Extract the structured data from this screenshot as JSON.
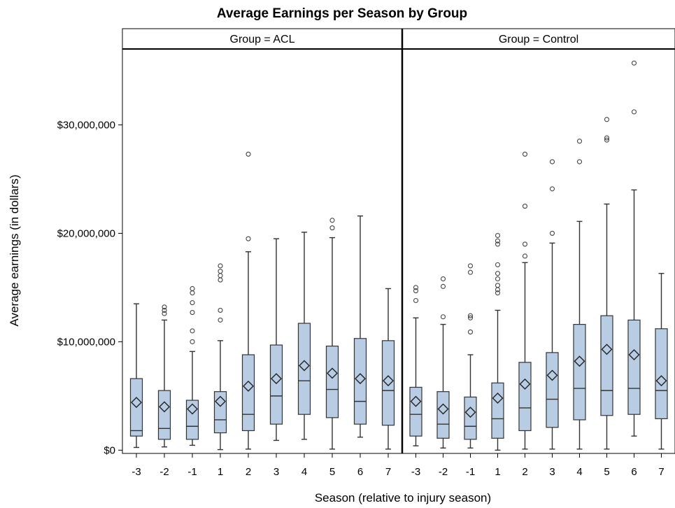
{
  "chart_data": {
    "type": "boxplot",
    "title": "Average Earnings per Season by Group",
    "xlabel": "Season (relative to injury season)",
    "ylabel": "Average earnings (in dollars)",
    "ylim": [
      -300000,
      37000000
    ],
    "yticks": [
      {
        "value": 0,
        "label": "$0"
      },
      {
        "value": 10000000,
        "label": "$10,000,000"
      },
      {
        "value": 20000000,
        "label": "$20,000,000"
      },
      {
        "value": 30000000,
        "label": "$30,000,000"
      }
    ],
    "categories": [
      "-3",
      "-2",
      "-1",
      "1",
      "2",
      "3",
      "4",
      "5",
      "6",
      "7"
    ],
    "box_color": "#b8cce4",
    "panels": [
      {
        "header": "Group = ACL",
        "boxes": [
          {
            "season": "-3",
            "whisker_low": 250000,
            "q1": 1300000,
            "median": 1800000,
            "q3": 6600000,
            "whisker_high": 13500000,
            "mean": 4400000,
            "outliers": []
          },
          {
            "season": "-2",
            "whisker_low": 300000,
            "q1": 1000000,
            "median": 2000000,
            "q3": 5500000,
            "whisker_high": 12000000,
            "mean": 4000000,
            "outliers": [
              12600000,
              12900000,
              13200000
            ]
          },
          {
            "season": "-1",
            "whisker_low": 450000,
            "q1": 1000000,
            "median": 2200000,
            "q3": 4600000,
            "whisker_high": 9100000,
            "mean": 3800000,
            "outliers": [
              10000000,
              11000000,
              12700000,
              13600000,
              14500000,
              14900000
            ]
          },
          {
            "season": "1",
            "whisker_low": 50000,
            "q1": 1600000,
            "median": 2800000,
            "q3": 5400000,
            "whisker_high": 10100000,
            "mean": 4500000,
            "outliers": [
              12000000,
              12900000,
              15700000,
              16100000,
              16500000,
              17000000
            ]
          },
          {
            "season": "2",
            "whisker_low": 100000,
            "q1": 1800000,
            "median": 3300000,
            "q3": 8800000,
            "whisker_high": 18300000,
            "mean": 5900000,
            "outliers": [
              19500000,
              27300000
            ]
          },
          {
            "season": "3",
            "whisker_low": 900000,
            "q1": 2400000,
            "median": 5000000,
            "q3": 9700000,
            "whisker_high": 19500000,
            "mean": 6600000,
            "outliers": []
          },
          {
            "season": "4",
            "whisker_low": 1000000,
            "q1": 3300000,
            "median": 6400000,
            "q3": 11700000,
            "whisker_high": 20100000,
            "mean": 7800000,
            "outliers": []
          },
          {
            "season": "5",
            "whisker_low": 100000,
            "q1": 3000000,
            "median": 5600000,
            "q3": 9600000,
            "whisker_high": 19600000,
            "mean": 7100000,
            "outliers": [
              20500000,
              21200000
            ]
          },
          {
            "season": "6",
            "whisker_low": 1200000,
            "q1": 2400000,
            "median": 4500000,
            "q3": 10300000,
            "whisker_high": 21600000,
            "mean": 6600000,
            "outliers": []
          },
          {
            "season": "7",
            "whisker_low": 100000,
            "q1": 2300000,
            "median": 5500000,
            "q3": 10100000,
            "whisker_high": 14900000,
            "mean": 6400000,
            "outliers": []
          }
        ]
      },
      {
        "header": "Group = Control",
        "boxes": [
          {
            "season": "-3",
            "whisker_low": 400000,
            "q1": 1300000,
            "median": 3300000,
            "q3": 5800000,
            "whisker_high": 12200000,
            "mean": 4500000,
            "outliers": [
              13800000,
              14700000,
              15000000
            ]
          },
          {
            "season": "-2",
            "whisker_low": 200000,
            "q1": 1100000,
            "median": 2400000,
            "q3": 5400000,
            "whisker_high": 11600000,
            "mean": 3800000,
            "outliers": [
              12300000,
              15100000,
              15800000
            ]
          },
          {
            "season": "-1",
            "whisker_low": 200000,
            "q1": 1000000,
            "median": 2200000,
            "q3": 4900000,
            "whisker_high": 8800000,
            "mean": 3500000,
            "outliers": [
              10900000,
              12200000,
              12400000,
              16400000,
              17000000
            ]
          },
          {
            "season": "1",
            "whisker_low": 0,
            "q1": 1100000,
            "median": 2900000,
            "q3": 6200000,
            "whisker_high": 12900000,
            "mean": 4800000,
            "outliers": [
              14500000,
              14800000,
              15200000,
              15800000,
              16300000,
              17100000,
              19000000,
              19300000,
              19800000
            ]
          },
          {
            "season": "2",
            "whisker_low": 100000,
            "q1": 1800000,
            "median": 3900000,
            "q3": 8100000,
            "whisker_high": 17300000,
            "mean": 6100000,
            "outliers": [
              17900000,
              19000000,
              22500000,
              27300000
            ]
          },
          {
            "season": "3",
            "whisker_low": 100000,
            "q1": 2100000,
            "median": 4700000,
            "q3": 9000000,
            "whisker_high": 19100000,
            "mean": 6900000,
            "outliers": [
              20000000,
              24100000,
              26600000
            ]
          },
          {
            "season": "4",
            "whisker_low": 100000,
            "q1": 2800000,
            "median": 5700000,
            "q3": 11600000,
            "whisker_high": 21100000,
            "mean": 8200000,
            "outliers": [
              26600000,
              28500000
            ]
          },
          {
            "season": "5",
            "whisker_low": 100000,
            "q1": 3200000,
            "median": 5500000,
            "q3": 12400000,
            "whisker_high": 22700000,
            "mean": 9300000,
            "outliers": [
              28600000,
              28800000,
              30500000
            ]
          },
          {
            "season": "6",
            "whisker_low": 1300000,
            "q1": 3300000,
            "median": 5700000,
            "q3": 12000000,
            "whisker_high": 24000000,
            "mean": 8800000,
            "outliers": [
              31200000,
              35700000
            ]
          },
          {
            "season": "7",
            "whisker_low": 100000,
            "q1": 2900000,
            "median": 5500000,
            "q3": 11200000,
            "whisker_high": 16300000,
            "mean": 6400000,
            "outliers": []
          }
        ]
      }
    ]
  }
}
